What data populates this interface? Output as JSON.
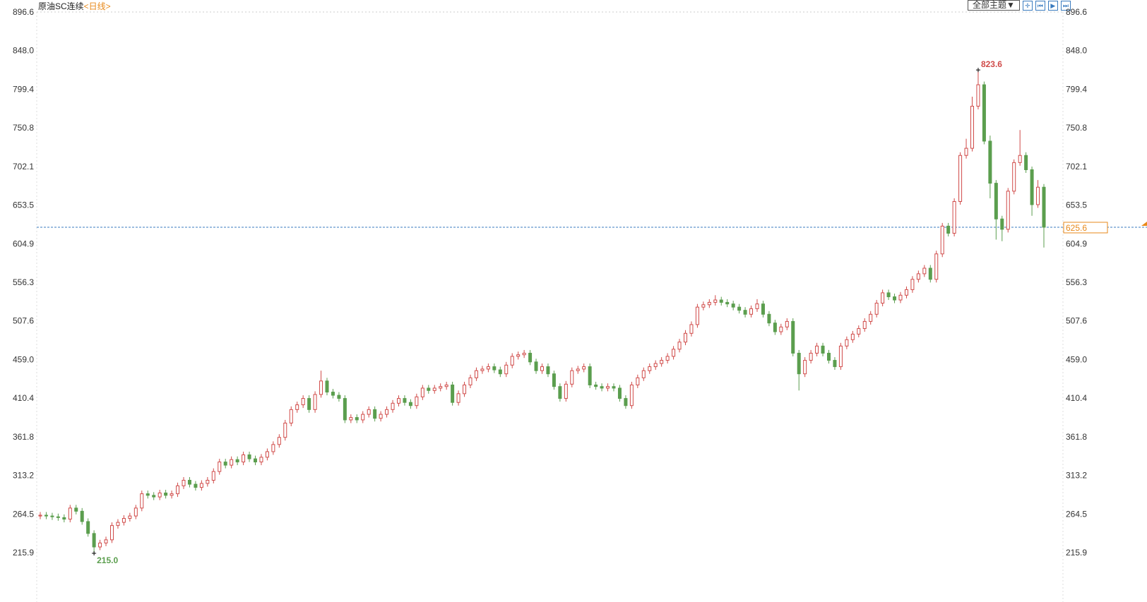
{
  "header": {
    "instrument": "原油SC连续",
    "period": "<日线>",
    "theme_button": "全部主题▼",
    "tool_icons": [
      "crosshair-icon",
      "step-back-icon",
      "play-icon",
      "jump-end-icon"
    ]
  },
  "colors": {
    "up": "#d04a48",
    "down": "#5b9e4e",
    "last_price": "#e8891a",
    "price_line": "#3a7bbf"
  },
  "chart_data": {
    "type": "candlestick",
    "title": "原油SC连续",
    "ylim": [
      215.9,
      896.6
    ],
    "y_ticks": [
      "896.6",
      "848.0",
      "799.4",
      "750.8",
      "702.1",
      "653.5",
      "604.9",
      "556.3",
      "507.6",
      "459.0",
      "410.4",
      "361.8",
      "313.2",
      "264.5",
      "215.9"
    ],
    "grid": false,
    "last_price": "625.6",
    "annotations": {
      "max": "823.6",
      "min": "215.0"
    },
    "open": [
      262,
      263,
      262,
      261,
      260,
      258,
      272,
      268,
      255,
      240,
      223,
      228,
      232,
      250,
      254,
      259,
      262,
      272,
      290,
      288,
      286,
      291,
      288,
      290,
      300,
      307,
      302,
      298,
      303,
      307,
      318,
      330,
      326,
      333,
      330,
      339,
      334,
      330,
      336,
      343,
      352,
      361,
      379,
      396,
      402,
      410,
      396,
      415,
      432,
      418,
      414,
      410,
      383,
      386,
      383,
      390,
      396,
      385,
      390,
      396,
      404,
      410,
      405,
      401,
      412,
      423,
      420,
      423,
      425,
      427,
      405,
      416,
      427,
      436,
      445,
      447,
      450,
      446,
      441,
      452,
      463,
      465,
      467,
      456,
      445,
      450,
      441,
      425,
      410,
      428,
      445,
      447,
      450,
      427,
      425,
      423,
      425,
      423,
      410,
      401,
      427,
      436,
      445,
      450,
      454,
      458,
      463,
      472,
      481,
      492,
      503,
      525,
      528,
      531,
      534,
      531,
      529,
      525,
      521,
      516,
      523,
      529,
      516,
      505,
      494,
      500,
      507,
      467,
      441,
      458,
      467,
      476,
      467,
      458,
      450,
      476,
      484,
      491,
      498,
      507,
      516,
      530,
      543,
      538,
      534,
      540,
      547,
      560,
      567,
      574,
      560,
      592,
      627,
      618,
      658,
      716,
      725,
      778,
      805,
      734,
      681,
      636,
      623,
      671,
      707,
      716,
      698,
      654,
      676
    ],
    "high": [
      267,
      267,
      266,
      265,
      264,
      276,
      276,
      272,
      259,
      244,
      232,
      236,
      254,
      258,
      263,
      266,
      276,
      294,
      294,
      292,
      295,
      295,
      294,
      304,
      311,
      311,
      306,
      307,
      311,
      322,
      334,
      334,
      337,
      337,
      343,
      343,
      338,
      340,
      347,
      356,
      365,
      383,
      400,
      406,
      414,
      414,
      419,
      445,
      436,
      422,
      418,
      414,
      390,
      390,
      394,
      400,
      400,
      394,
      400,
      408,
      414,
      414,
      409,
      416,
      427,
      427,
      427,
      429,
      431,
      431,
      420,
      431,
      440,
      449,
      451,
      454,
      454,
      450,
      456,
      467,
      469,
      471,
      471,
      460,
      454,
      454,
      445,
      429,
      432,
      449,
      451,
      454,
      454,
      431,
      429,
      429,
      429,
      427,
      414,
      431,
      440,
      449,
      454,
      458,
      462,
      467,
      476,
      485,
      496,
      507,
      529,
      532,
      535,
      540,
      538,
      535,
      533,
      529,
      525,
      527,
      535,
      533,
      520,
      509,
      504,
      511,
      511,
      471,
      462,
      471,
      480,
      480,
      471,
      462,
      480,
      488,
      495,
      502,
      511,
      520,
      534,
      547,
      547,
      542,
      544,
      551,
      564,
      571,
      578,
      578,
      596,
      631,
      631,
      662,
      720,
      737,
      790,
      823.6,
      809,
      741,
      685,
      640,
      675,
      711,
      748,
      720,
      702,
      685,
      680
    ],
    "low": [
      258,
      258,
      257,
      256,
      254,
      254,
      264,
      251,
      236,
      215.0,
      219,
      224,
      228,
      246,
      250,
      255,
      258,
      268,
      284,
      282,
      282,
      284,
      284,
      286,
      296,
      298,
      294,
      294,
      299,
      303,
      314,
      322,
      322,
      326,
      326,
      330,
      326,
      326,
      332,
      339,
      348,
      357,
      375,
      392,
      398,
      392,
      392,
      411,
      414,
      410,
      406,
      379,
      379,
      379,
      379,
      386,
      381,
      381,
      386,
      392,
      400,
      401,
      397,
      397,
      408,
      416,
      416,
      419,
      421,
      401,
      401,
      412,
      423,
      432,
      441,
      443,
      442,
      437,
      437,
      448,
      459,
      461,
      452,
      441,
      441,
      437,
      421,
      406,
      406,
      424,
      441,
      443,
      423,
      421,
      419,
      419,
      419,
      406,
      397,
      397,
      423,
      432,
      441,
      446,
      450,
      454,
      459,
      468,
      477,
      488,
      499,
      521,
      524,
      527,
      527,
      525,
      521,
      517,
      512,
      512,
      519,
      512,
      501,
      490,
      490,
      496,
      463,
      420,
      437,
      454,
      463,
      463,
      454,
      446,
      446,
      472,
      480,
      487,
      494,
      503,
      512,
      526,
      534,
      530,
      530,
      536,
      543,
      556,
      563,
      556,
      556,
      588,
      614,
      614,
      654,
      712,
      721,
      774,
      730,
      662,
      610,
      608,
      619,
      667,
      703,
      694,
      640,
      650,
      600
    ],
    "close": [
      263,
      262,
      261,
      260,
      258,
      272,
      268,
      255,
      240,
      223,
      228,
      232,
      250,
      254,
      259,
      262,
      272,
      290,
      288,
      286,
      291,
      288,
      290,
      300,
      307,
      302,
      298,
      303,
      307,
      318,
      330,
      326,
      333,
      330,
      339,
      334,
      330,
      336,
      343,
      352,
      361,
      379,
      396,
      402,
      410,
      396,
      415,
      432,
      418,
      414,
      410,
      383,
      386,
      383,
      390,
      396,
      385,
      390,
      396,
      404,
      410,
      405,
      401,
      412,
      423,
      420,
      423,
      425,
      427,
      405,
      416,
      427,
      436,
      445,
      447,
      450,
      446,
      441,
      452,
      463,
      465,
      467,
      456,
      445,
      450,
      441,
      425,
      410,
      428,
      445,
      447,
      450,
      427,
      425,
      423,
      425,
      423,
      410,
      401,
      427,
      436,
      445,
      450,
      454,
      458,
      463,
      472,
      481,
      492,
      503,
      525,
      528,
      531,
      534,
      531,
      529,
      525,
      521,
      516,
      523,
      529,
      516,
      505,
      494,
      500,
      507,
      467,
      441,
      458,
      467,
      476,
      467,
      458,
      450,
      476,
      484,
      491,
      498,
      507,
      516,
      530,
      543,
      538,
      534,
      540,
      547,
      560,
      567,
      574,
      560,
      592,
      627,
      618,
      658,
      716,
      725,
      778,
      805,
      734,
      681,
      636,
      623,
      671,
      707,
      716,
      698,
      654,
      676,
      625.6
    ]
  }
}
